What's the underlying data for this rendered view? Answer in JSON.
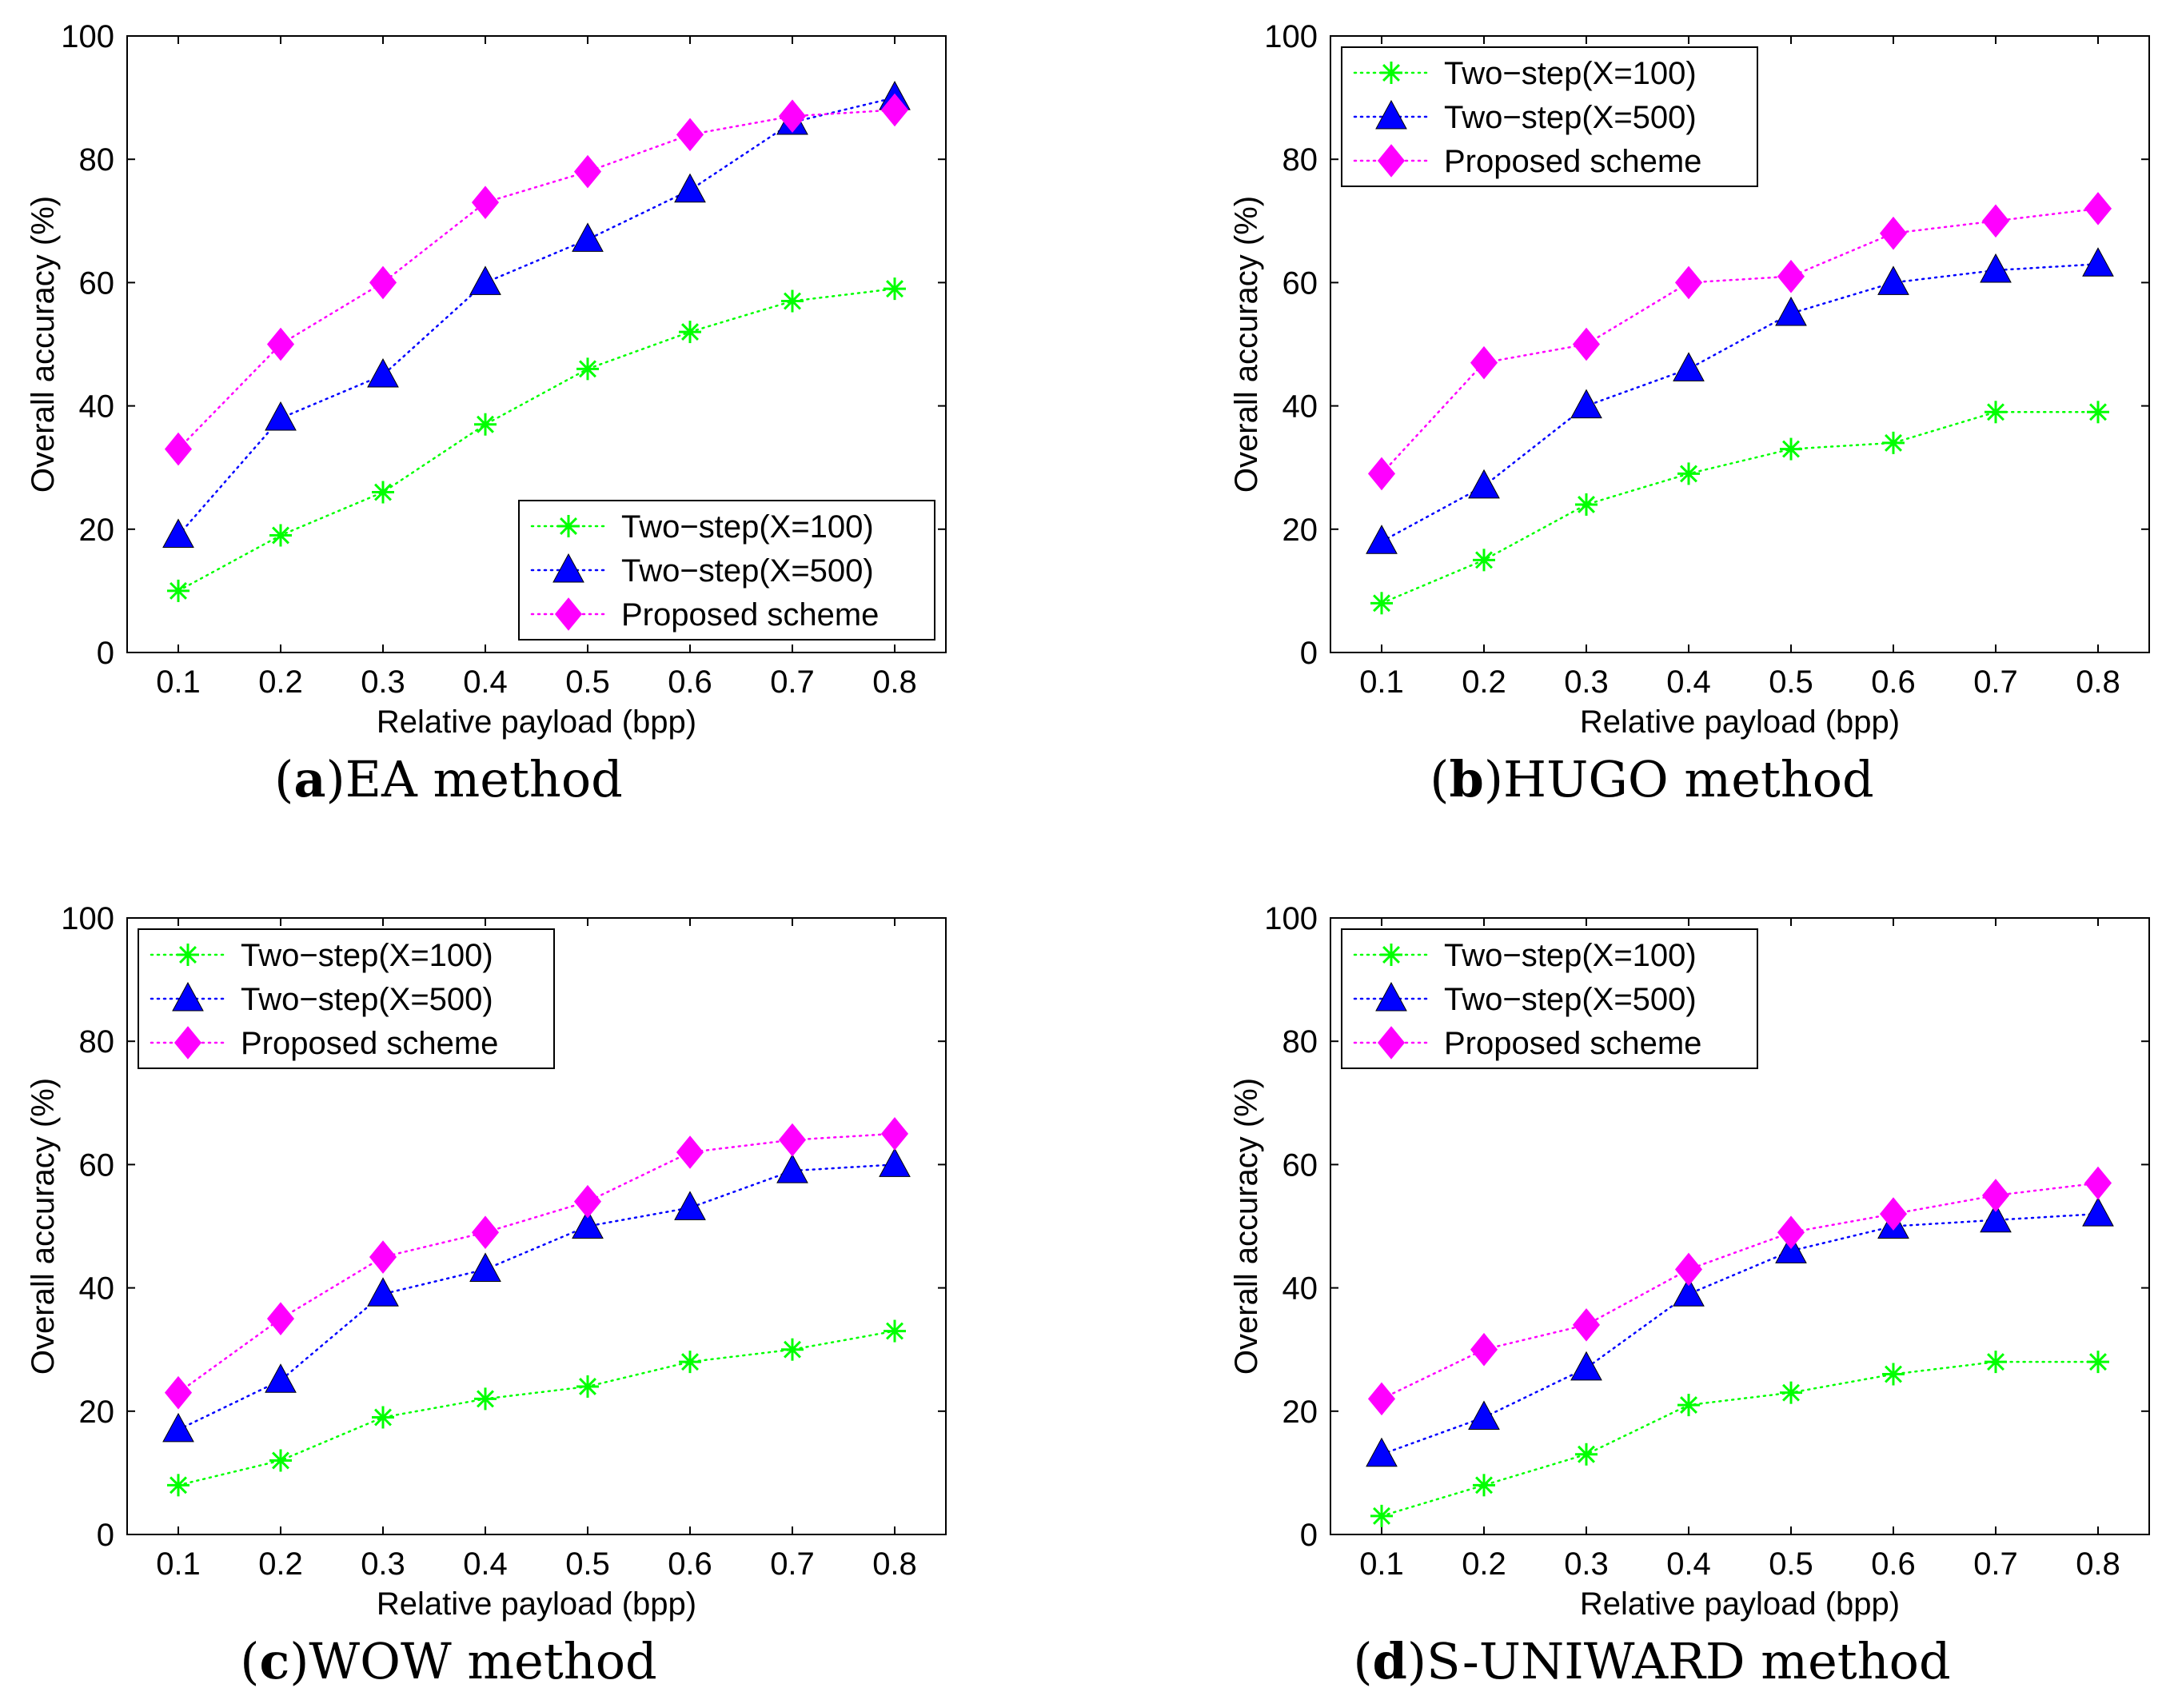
{
  "chart_data": [
    {
      "type": "line",
      "caption_letter": "a",
      "caption_text": "EA method",
      "xlabel": "Relative payload (bpp)",
      "ylabel": "Overall accuracy (%)",
      "x": [
        0.1,
        0.2,
        0.3,
        0.4,
        0.5,
        0.6,
        0.7,
        0.8
      ],
      "x_tick_labels": [
        "0.1",
        "0.2",
        "0.3",
        "0.4",
        "0.5",
        "0.6",
        "0.7",
        "0.8"
      ],
      "xlim": [
        0.05,
        0.85
      ],
      "ylim": [
        0,
        100
      ],
      "y_ticks": [
        0,
        20,
        40,
        60,
        80,
        100
      ],
      "legend_location": "bottom-right",
      "series": [
        {
          "name": "Two−step(X=100)",
          "color": "#00ff00",
          "marker": "asterisk",
          "values": [
            10,
            19,
            26,
            37,
            46,
            52,
            57,
            59
          ]
        },
        {
          "name": "Two−step(X=500)",
          "color": "#0000ff",
          "marker": "triangle",
          "values": [
            19,
            38,
            45,
            60,
            67,
            75,
            86,
            90
          ]
        },
        {
          "name": "Proposed scheme",
          "color": "#ff00ff",
          "marker": "diamond",
          "values": [
            33,
            50,
            60,
            73,
            78,
            84,
            87,
            88
          ]
        }
      ]
    },
    {
      "type": "line",
      "caption_letter": "b",
      "caption_text": "HUGO method",
      "xlabel": "Relative payload (bpp)",
      "ylabel": "Overall accuracy (%)",
      "x": [
        0.1,
        0.2,
        0.3,
        0.4,
        0.5,
        0.6,
        0.7,
        0.8
      ],
      "x_tick_labels": [
        "0.1",
        "0.2",
        "0.3",
        "0.4",
        "0.5",
        "0.6",
        "0.7",
        "0.8"
      ],
      "xlim": [
        0.05,
        0.85
      ],
      "ylim": [
        0,
        100
      ],
      "y_ticks": [
        0,
        20,
        40,
        60,
        80,
        100
      ],
      "legend_location": "top-left",
      "series": [
        {
          "name": "Two−step(X=100)",
          "color": "#00ff00",
          "marker": "asterisk",
          "values": [
            8,
            15,
            24,
            29,
            33,
            34,
            39,
            39
          ]
        },
        {
          "name": "Two−step(X=500)",
          "color": "#0000ff",
          "marker": "triangle",
          "values": [
            18,
            27,
            40,
            46,
            55,
            60,
            62,
            63
          ]
        },
        {
          "name": "Proposed scheme",
          "color": "#ff00ff",
          "marker": "diamond",
          "values": [
            29,
            47,
            50,
            60,
            61,
            68,
            70,
            72
          ]
        }
      ]
    },
    {
      "type": "line",
      "caption_letter": "c",
      "caption_text": "WOW method",
      "xlabel": "Relative payload (bpp)",
      "ylabel": "Overall accuracy (%)",
      "x": [
        0.1,
        0.2,
        0.3,
        0.4,
        0.5,
        0.6,
        0.7,
        0.8
      ],
      "x_tick_labels": [
        "0.1",
        "0.2",
        "0.3",
        "0.4",
        "0.5",
        "0.6",
        "0.7",
        "0.8"
      ],
      "xlim": [
        0.05,
        0.85
      ],
      "ylim": [
        0,
        100
      ],
      "y_ticks": [
        0,
        20,
        40,
        60,
        80,
        100
      ],
      "legend_location": "top-left",
      "series": [
        {
          "name": "Two−step(X=100)",
          "color": "#00ff00",
          "marker": "asterisk",
          "values": [
            8,
            12,
            19,
            22,
            24,
            28,
            30,
            33
          ]
        },
        {
          "name": "Two−step(X=500)",
          "color": "#0000ff",
          "marker": "triangle",
          "values": [
            17,
            25,
            39,
            43,
            50,
            53,
            59,
            60
          ]
        },
        {
          "name": "Proposed scheme",
          "color": "#ff00ff",
          "marker": "diamond",
          "values": [
            23,
            35,
            45,
            49,
            54,
            62,
            64,
            65
          ]
        }
      ]
    },
    {
      "type": "line",
      "caption_letter": "d",
      "caption_text": "S-UNIWARD method",
      "xlabel": "Relative payload (bpp)",
      "ylabel": "Overall accuracy (%)",
      "x": [
        0.1,
        0.2,
        0.3,
        0.4,
        0.5,
        0.6,
        0.7,
        0.8
      ],
      "x_tick_labels": [
        "0.1",
        "0.2",
        "0.3",
        "0.4",
        "0.5",
        "0.6",
        "0.7",
        "0.8"
      ],
      "xlim": [
        0.05,
        0.85
      ],
      "ylim": [
        0,
        100
      ],
      "y_ticks": [
        0,
        20,
        40,
        60,
        80,
        100
      ],
      "legend_location": "top-left",
      "series": [
        {
          "name": "Two−step(X=100)",
          "color": "#00ff00",
          "marker": "asterisk",
          "values": [
            3,
            8,
            13,
            21,
            23,
            26,
            28,
            28
          ]
        },
        {
          "name": "Two−step(X=500)",
          "color": "#0000ff",
          "marker": "triangle",
          "values": [
            13,
            19,
            27,
            39,
            46,
            50,
            51,
            52
          ]
        },
        {
          "name": "Proposed scheme",
          "color": "#ff00ff",
          "marker": "diamond",
          "values": [
            22,
            30,
            34,
            43,
            49,
            52,
            55,
            57
          ]
        }
      ]
    }
  ]
}
